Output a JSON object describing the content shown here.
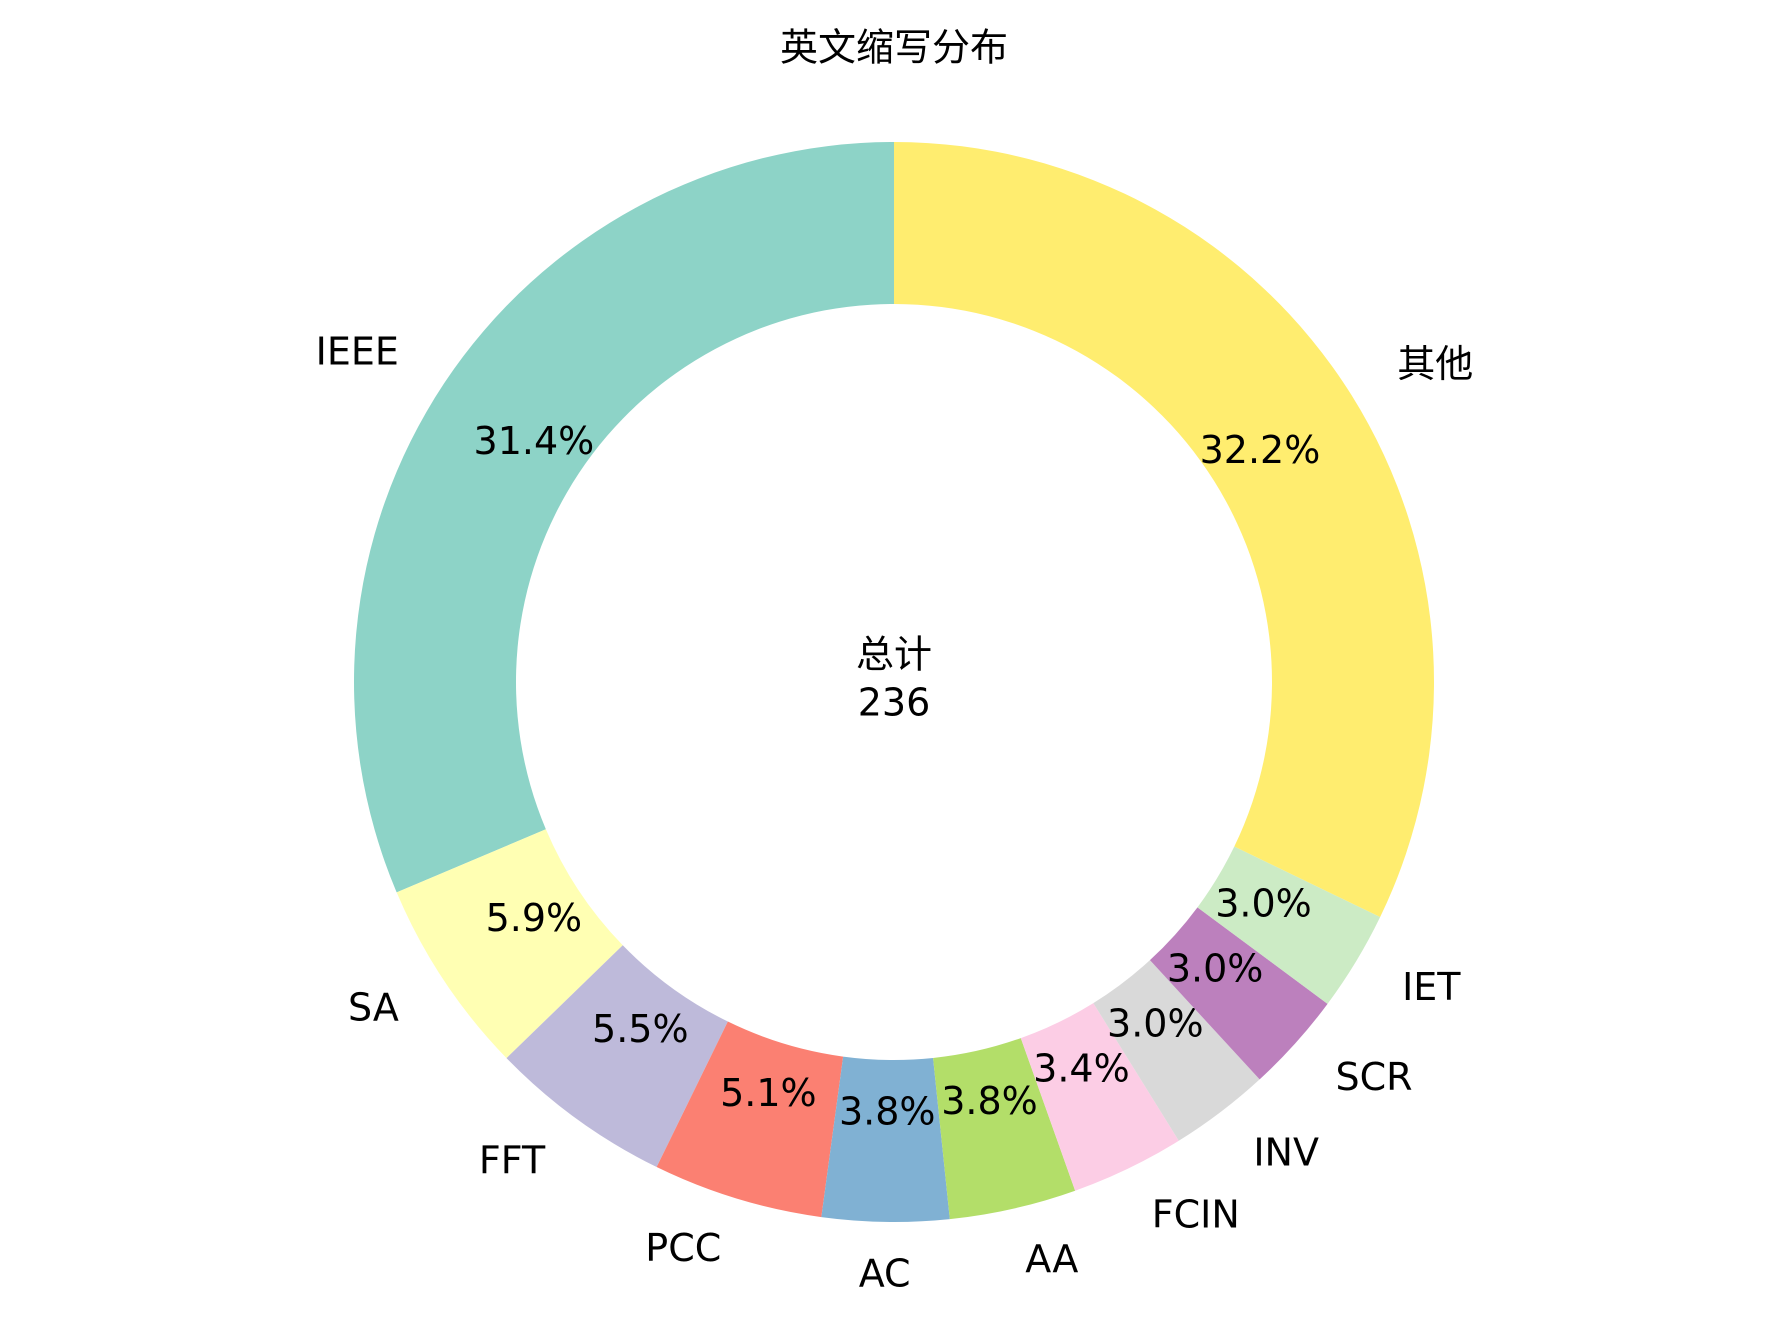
{
  "chart_data": {
    "type": "donut",
    "title": "英文缩写分布",
    "categories": [
      "IEEE",
      "SA",
      "FFT",
      "PCC",
      "AC",
      "AA",
      "FCIN",
      "INV",
      "SCR",
      "IET",
      "其他"
    ],
    "values": [
      31.4,
      5.9,
      5.5,
      5.1,
      3.8,
      3.8,
      3.4,
      3.0,
      3.0,
      3.0,
      32.2
    ],
    "value_labels": [
      "31.4%",
      "5.9%",
      "5.5%",
      "5.1%",
      "3.8%",
      "3.8%",
      "3.4%",
      "3.0%",
      "3.0%",
      "3.0%",
      "32.2%"
    ],
    "colors": [
      "#8dd3c7",
      "#ffffb3",
      "#bebada",
      "#fb8072",
      "#80b1d3",
      "#b3de69",
      "#fccde5",
      "#d9d9d9",
      "#bc80bd",
      "#ccebc5",
      "#ffed6f"
    ],
    "center_title": "总计",
    "total": 236
  }
}
